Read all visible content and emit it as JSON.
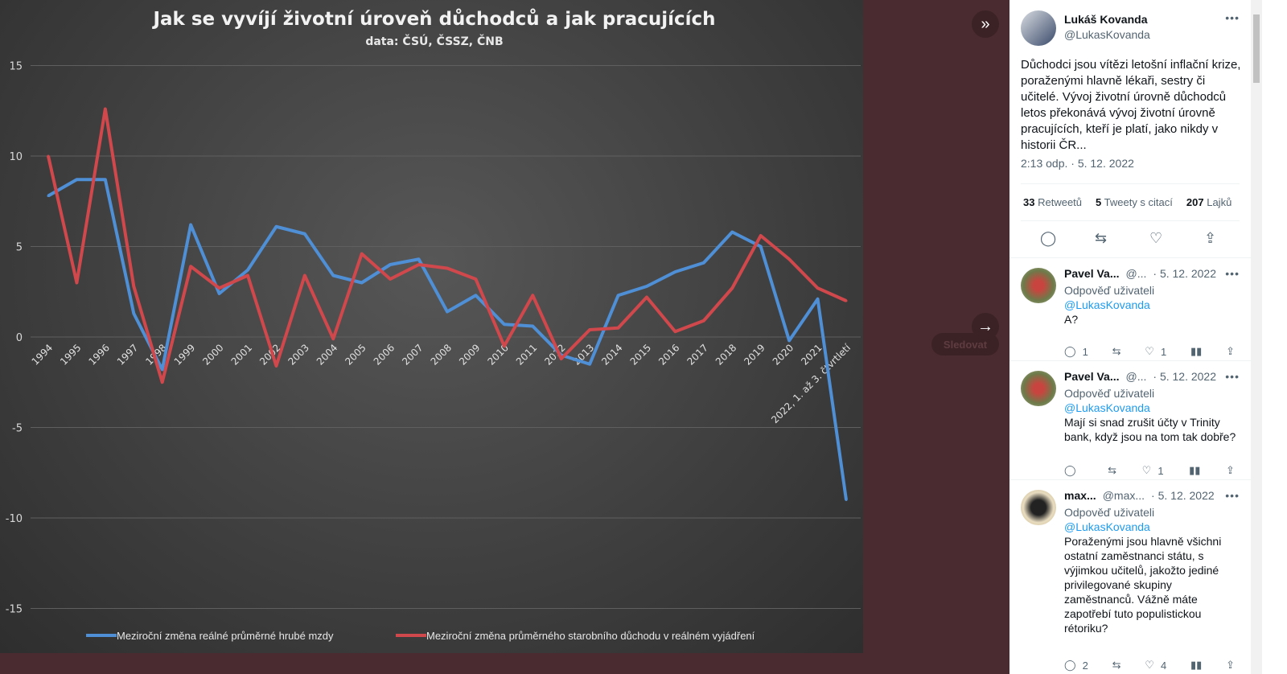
{
  "background": {
    "follow_button": "Sledovat",
    "collapse_icon": "double-chevron-right",
    "next_icon": "arrow-right"
  },
  "tweet": {
    "author_name": "Lukáš Kovanda",
    "author_handle": "@LukasKovanda",
    "text": "Důchodci jsou vítězi letošní inflační krize, poraženými hlavně lékaři, sestry či učitelé. Vývoj životní úrovně důchodců letos překonává vývoj životní úrovně pracujících, kteří je platí, jako nikdy v historii ČR...",
    "timestamp": "2:13 odp. · 5. 12. 2022",
    "stats": [
      {
        "count": "33",
        "label": "Retweetů"
      },
      {
        "count": "5",
        "label": "Tweety s citací"
      },
      {
        "count": "207",
        "label": "Lajků"
      }
    ]
  },
  "replies": [
    {
      "name": "Pavel Va...",
      "handle": "@...",
      "date": "· 5. 12. 2022",
      "reply_to_label": "Odpověď uživateli",
      "reply_to": "@LukasKovanda",
      "text": "A?",
      "replies": "1",
      "retweets": "",
      "likes": "1"
    },
    {
      "name": "Pavel Va...",
      "handle": "@...",
      "date": "· 5. 12. 2022",
      "reply_to_label": "Odpověď uživateli",
      "reply_to": "@LukasKovanda",
      "text": "Mají si snad zrušit účty v Trinity bank, když jsou na tom tak dobře?",
      "replies": "",
      "retweets": "",
      "likes": "1"
    },
    {
      "name": "max...",
      "handle": "@max...",
      "date": "· 5. 12. 2022",
      "reply_to_label": "Odpověď uživateli",
      "reply_to": "@LukasKovanda",
      "text": "Poraženými jsou hlavně všichni ostatní zaměstnanci státu, s výjimkou učitelů, jakožto jediné privilegované skupiny zaměstnanců. Vážně máte zapotřebí tuto populistickou rétoriku?",
      "replies": "2",
      "retweets": "",
      "likes": "4"
    }
  ],
  "chart_data": {
    "type": "line",
    "title": "Jak se vyvíjí životní úroveň důchodců a jak pracujících",
    "subtitle": "data: ČSÚ, ČSSZ, ČNB",
    "categories": [
      "1994",
      "1995",
      "1996",
      "1997",
      "1998",
      "1999",
      "2000",
      "2001",
      "2002",
      "2003",
      "2004",
      "2005",
      "2006",
      "2007",
      "2008",
      "2009",
      "2010",
      "2011",
      "2012",
      "2013",
      "2014",
      "2015",
      "2016",
      "2017",
      "2018",
      "2019",
      "2020",
      "2021",
      "2022, 1. až 3. čtvrtletí"
    ],
    "ylim": [
      -15,
      15
    ],
    "yticks": [
      "15",
      "10",
      "5",
      "0",
      "-5",
      "-10",
      "-15"
    ],
    "grid": true,
    "legend_position": "bottom",
    "series": [
      {
        "name": "Meziroční změna reálné průměrné hrubé mzdy",
        "color": "#4f8fd6",
        "values": [
          7.8,
          8.7,
          8.7,
          1.3,
          -1.8,
          6.2,
          2.4,
          3.7,
          6.1,
          5.7,
          3.4,
          3.0,
          4.0,
          4.3,
          1.4,
          2.3,
          0.7,
          0.6,
          -1.0,
          -1.5,
          2.3,
          2.8,
          3.6,
          4.1,
          5.8,
          5.0,
          -0.2,
          2.1,
          -9.0
        ]
      },
      {
        "name": "Meziroční změna průměrného starobního důchodu v reálném vyjádření",
        "color": "#d0484c",
        "values": [
          10.0,
          3.0,
          12.6,
          2.8,
          -2.5,
          3.9,
          2.7,
          3.4,
          -1.6,
          3.4,
          -0.1,
          4.6,
          3.2,
          4.0,
          3.8,
          3.2,
          -0.5,
          2.3,
          -1.2,
          0.4,
          0.5,
          2.2,
          0.3,
          0.9,
          2.7,
          5.6,
          4.3,
          2.7,
          2.0
        ]
      }
    ]
  }
}
